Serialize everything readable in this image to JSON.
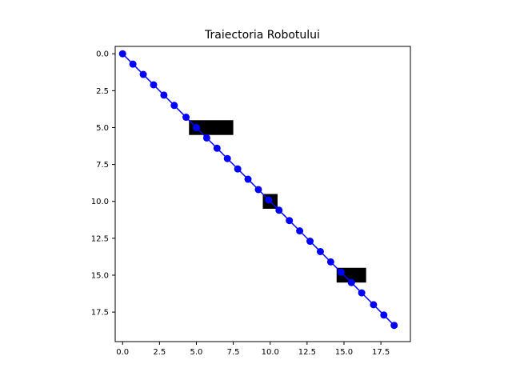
{
  "chart_data": {
    "type": "scatter",
    "title": "Traiectoria Robotului",
    "xlabel": "",
    "ylabel": "",
    "xlim": [
      -0.5,
      19.5
    ],
    "ylim": [
      19.5,
      -0.5
    ],
    "y_inverted": true,
    "grid": false,
    "x_ticks": [
      0.0,
      2.5,
      5.0,
      7.5,
      10.0,
      12.5,
      15.0,
      17.5
    ],
    "x_tick_labels": [
      "0.0",
      "2.5",
      "5.0",
      "7.5",
      "10.0",
      "12.5",
      "15.0",
      "17.5"
    ],
    "y_ticks": [
      0.0,
      2.5,
      5.0,
      7.5,
      10.0,
      12.5,
      15.0,
      17.5
    ],
    "y_tick_labels": [
      "0.0",
      "2.5",
      "5.0",
      "7.5",
      "10.0",
      "12.5",
      "15.0",
      "17.5"
    ],
    "obstacles": [
      {
        "x": [
          4.5,
          7.5
        ],
        "y": [
          4.5,
          5.5
        ]
      },
      {
        "x": [
          9.5,
          10.5
        ],
        "y": [
          9.5,
          10.5
        ]
      },
      {
        "x": [
          14.5,
          16.5
        ],
        "y": [
          14.5,
          15.5
        ]
      }
    ],
    "obstacle_color": "#000000",
    "series": [
      {
        "color": "#0000ff",
        "marker": "circle",
        "x": [
          0.0,
          0.7,
          1.4,
          2.1,
          2.8,
          3.5,
          4.3,
          5.0,
          5.7,
          6.4,
          7.1,
          7.8,
          8.5,
          9.2,
          9.9,
          10.6,
          11.3,
          12.0,
          12.7,
          13.4,
          14.1,
          14.8,
          15.5,
          16.2,
          17.0,
          17.7,
          18.4
        ],
        "y": [
          0.0,
          0.7,
          1.4,
          2.1,
          2.8,
          3.5,
          4.3,
          5.0,
          5.7,
          6.4,
          7.1,
          7.8,
          8.5,
          9.2,
          9.9,
          10.6,
          11.3,
          12.0,
          12.7,
          13.4,
          14.1,
          14.8,
          15.5,
          16.2,
          17.0,
          17.7,
          18.4
        ]
      }
    ]
  }
}
